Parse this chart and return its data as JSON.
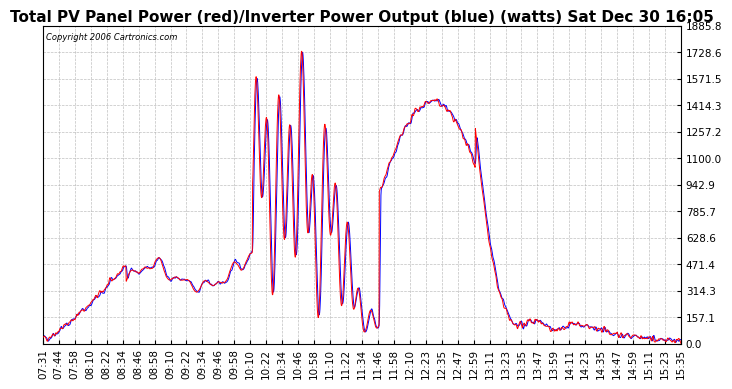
{
  "title": "Total PV Panel Power (red)/Inverter Power Output (blue) (watts) Sat Dec 30 16:05",
  "copyright_text": "Copyright 2006 Cartronics.com",
  "ylim": [
    0,
    1885.8
  ],
  "yticks": [
    0.0,
    157.1,
    314.3,
    471.4,
    628.6,
    785.7,
    942.9,
    1100.0,
    1257.2,
    1414.3,
    1571.5,
    1728.6,
    1885.8
  ],
  "color_red": "#ff0000",
  "color_blue": "#0000ff",
  "bg_color": "#ffffff",
  "grid_color": "#b0b0b0",
  "title_fontsize": 11,
  "tick_fontsize": 7.5,
  "time_labels": [
    "07:31",
    "07:44",
    "07:58",
    "08:10",
    "08:22",
    "08:34",
    "08:46",
    "08:58",
    "09:10",
    "09:22",
    "09:34",
    "09:46",
    "09:58",
    "10:10",
    "10:22",
    "10:34",
    "10:46",
    "10:58",
    "11:10",
    "11:22",
    "11:34",
    "11:46",
    "11:58",
    "12:10",
    "12:23",
    "12:35",
    "12:47",
    "12:59",
    "13:11",
    "13:23",
    "13:35",
    "13:47",
    "13:59",
    "14:11",
    "14:23",
    "14:35",
    "14:47",
    "14:59",
    "15:11",
    "15:23",
    "15:35"
  ]
}
